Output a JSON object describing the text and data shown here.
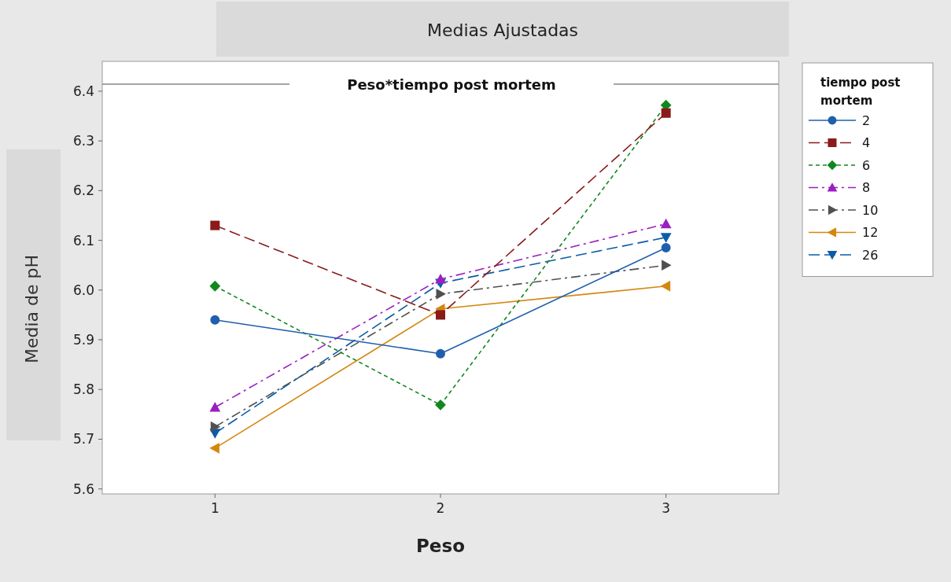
{
  "chart_data": {
    "type": "line",
    "title": "Medias Ajustadas",
    "subtitle": "Peso*tiempo post mortem",
    "xlabel": "Peso",
    "ylabel": "Media de pH",
    "legend_title": "tiempo post mortem",
    "legend": "right",
    "x": [
      1,
      2,
      3
    ],
    "xlim": [
      0.5,
      3.5
    ],
    "xticks": [
      1,
      2,
      3
    ],
    "ylim": [
      5.59,
      6.46
    ],
    "yticks": [
      5.6,
      5.7,
      5.8,
      5.9,
      {
        "value": 6,
        "label": "6.0"
      },
      6.1,
      6.2,
      6.3,
      6.4
    ],
    "grid": false,
    "series": [
      {
        "name": "2",
        "color": "#1f5fad",
        "marker": "circle",
        "line_style": "solid",
        "values": [
          5.94,
          5.872,
          6.085
        ]
      },
      {
        "name": "4",
        "color": "#8b1a1a",
        "marker": "square",
        "line_style": "dashed",
        "values": [
          6.13,
          5.95,
          6.356
        ]
      },
      {
        "name": "6",
        "color": "#12871f",
        "marker": "diamond",
        "line_style": "dotted",
        "values": [
          6.008,
          5.769,
          6.372
        ]
      },
      {
        "name": "8",
        "color": "#9b1fc0",
        "marker": "triangle",
        "line_style": "dashdot",
        "values": [
          5.764,
          6.022,
          6.133
        ]
      },
      {
        "name": "10",
        "color": "#505050",
        "marker": "triangle-right",
        "line_style": "dashdot",
        "values": [
          5.725,
          5.992,
          6.05
        ]
      },
      {
        "name": "12",
        "color": "#d4870e",
        "marker": "triangle-left",
        "line_style": "solid",
        "values": [
          5.682,
          5.962,
          6.008
        ]
      },
      {
        "name": "26",
        "color": "#0b5ca8",
        "marker": "triangle-down",
        "line_style": "dashed",
        "values": [
          5.712,
          6.014,
          6.106
        ]
      }
    ]
  }
}
